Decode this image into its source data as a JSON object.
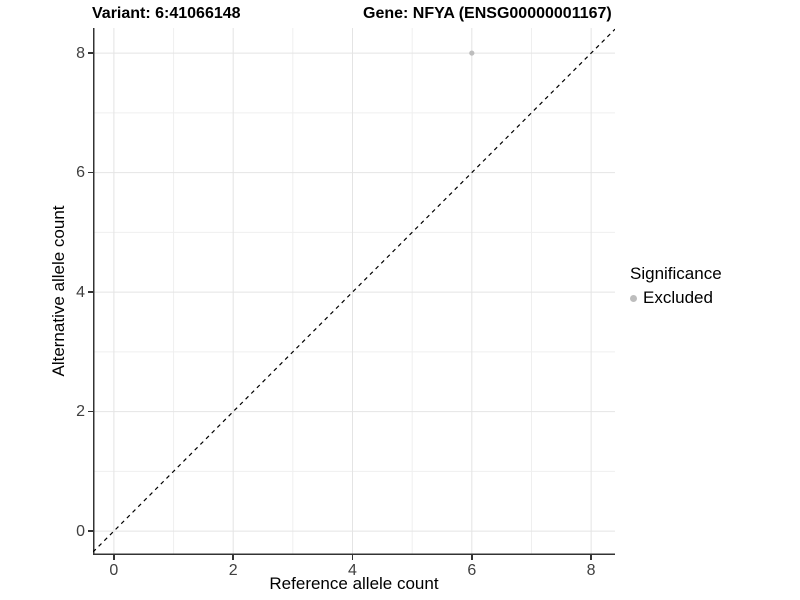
{
  "titles": {
    "variant": "Variant: 6:41066148",
    "gene": "Gene: NFYA (ENSG00000001167)"
  },
  "axes": {
    "x": {
      "label": "Reference allele count"
    },
    "y": {
      "label": "Alternative allele count"
    }
  },
  "legend": {
    "title": "Significance",
    "items": [
      {
        "label": "Excluded",
        "color": "#bdbdbd"
      }
    ]
  },
  "chart_data": {
    "type": "scatter",
    "title": "Variant: 6:41066148 | Gene: NFYA (ENSG00000001167)",
    "xlabel": "Reference allele count",
    "ylabel": "Alternative allele count",
    "xlim": [
      -0.35,
      8.4
    ],
    "ylim": [
      -0.4,
      8.42
    ],
    "x_ticks": [
      0,
      2,
      4,
      6,
      8
    ],
    "y_ticks": [
      0,
      2,
      4,
      6,
      8
    ],
    "minor_gridlines_x": [
      1,
      3,
      5,
      7
    ],
    "minor_gridlines_y": [
      1,
      3,
      5,
      7
    ],
    "grid": true,
    "legend_position": "right",
    "series": [
      {
        "name": "Excluded",
        "color": "#bdbdbd",
        "points": [
          {
            "x": 6,
            "y": 8
          }
        ]
      }
    ],
    "reference_line": {
      "type": "identity",
      "slope": 1,
      "intercept": 0,
      "style": "dashed",
      "color": "#000000"
    },
    "colors": {
      "axis_line": "#333333",
      "major_grid": "#e4e4e4",
      "minor_grid": "#efefef",
      "tick_text": "#404040"
    }
  }
}
